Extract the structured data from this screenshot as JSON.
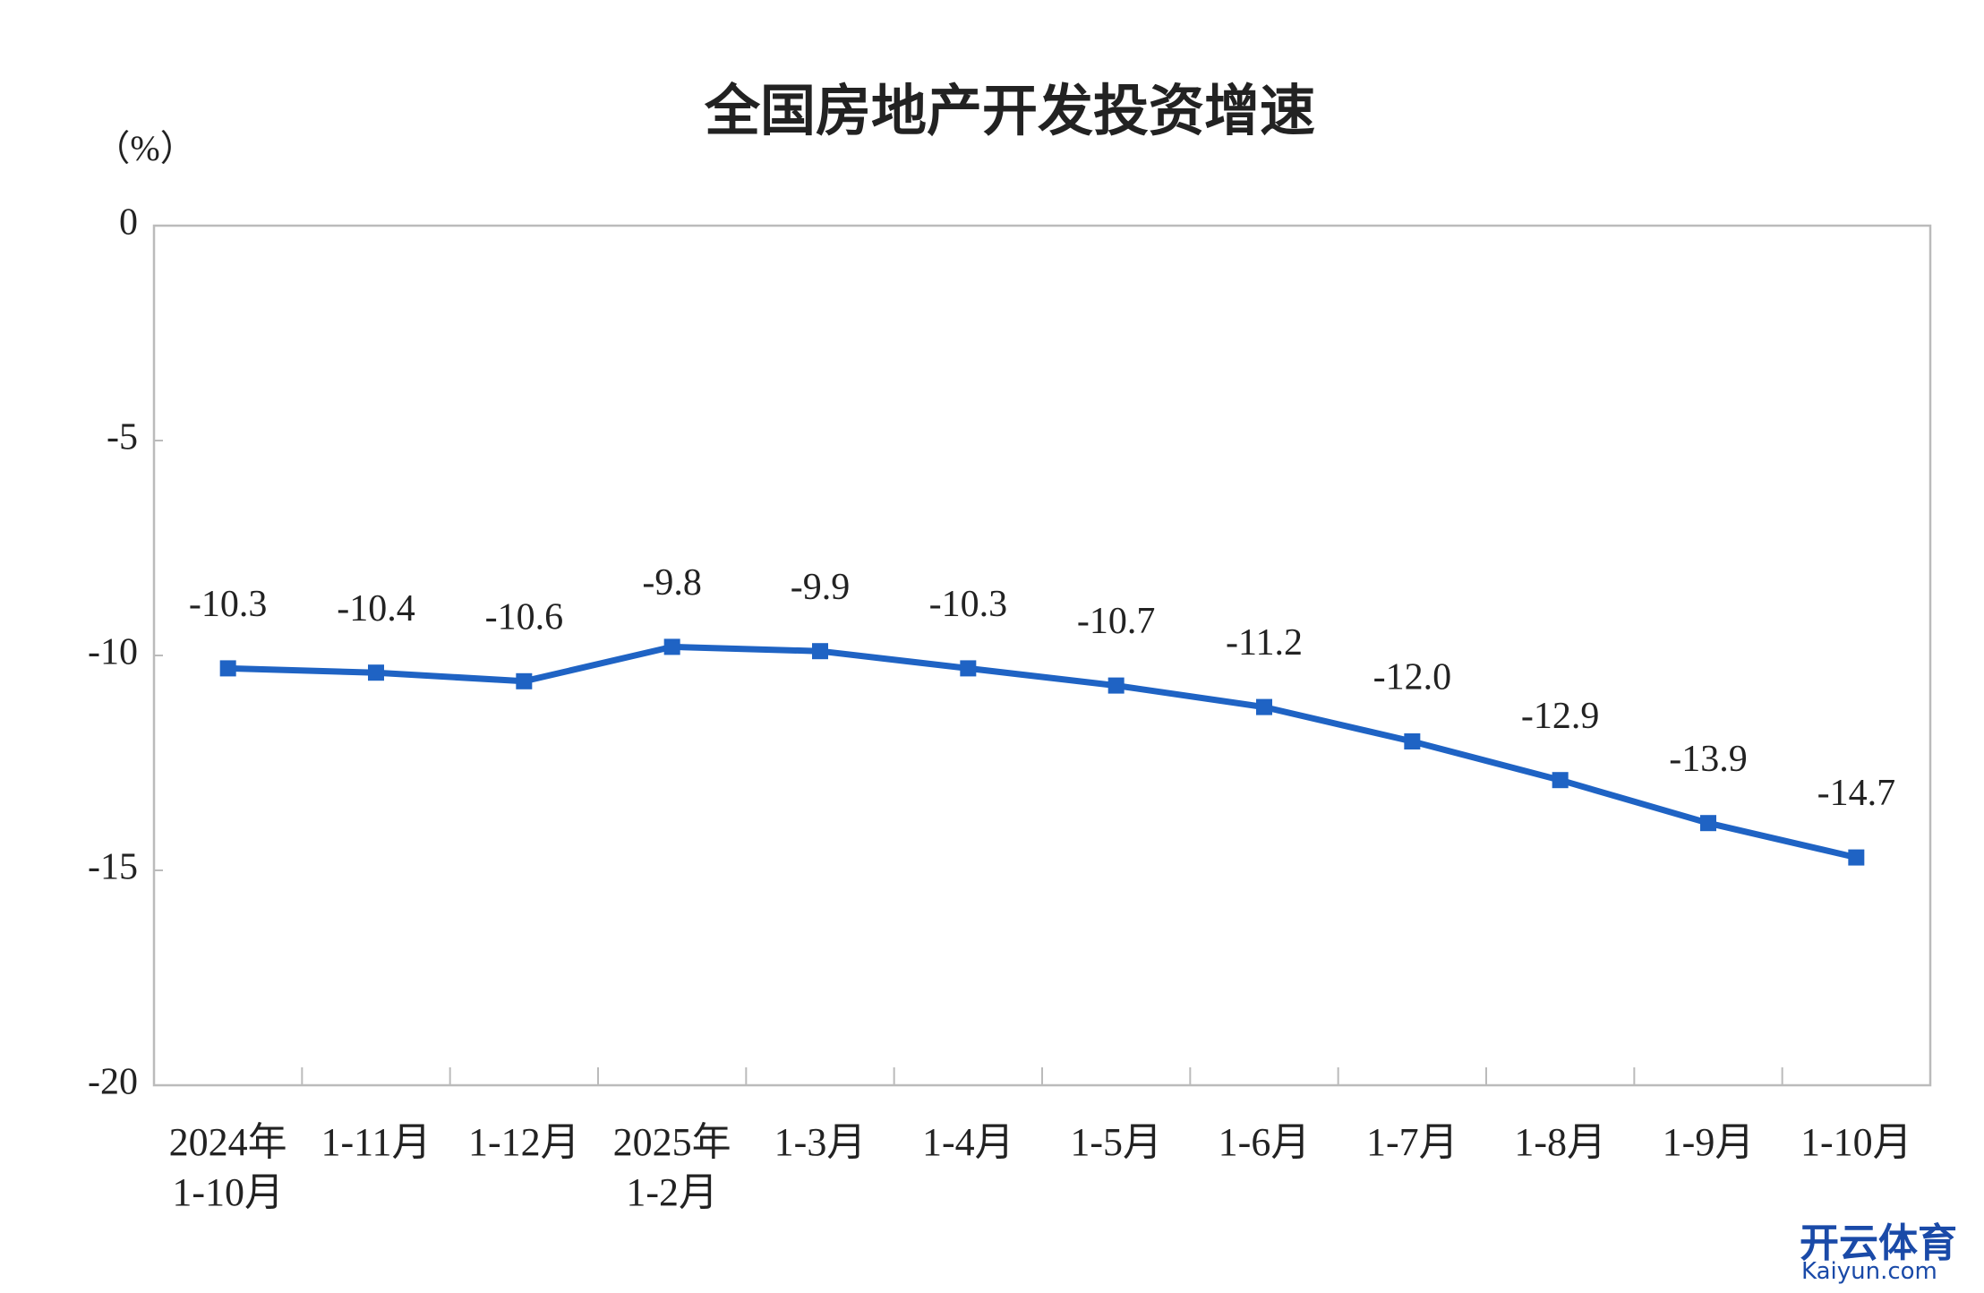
{
  "chart_data": {
    "type": "line",
    "title": "全国房地产开发投资增速",
    "unit_label": "（%）",
    "categories": [
      "2024年\n1-10月",
      "1-11月",
      "1-12月",
      "2025年\n1-2月",
      "1-3月",
      "1-4月",
      "1-5月",
      "1-6月",
      "1-7月",
      "1-8月",
      "1-9月",
      "1-10月"
    ],
    "series": [
      {
        "name": "全国房地产开发投资增速",
        "color": "#1f63c4",
        "values": [
          -10.3,
          -10.4,
          -10.6,
          -9.8,
          -9.9,
          -10.3,
          -10.7,
          -11.2,
          -12.0,
          -12.9,
          -13.9,
          -14.7
        ],
        "value_labels": [
          "-10.3",
          "-10.4",
          "-10.6",
          "-9.8",
          "-9.9",
          "-10.3",
          "-10.7",
          "-11.2",
          "-12.0",
          "-12.9",
          "-13.9",
          "-14.7"
        ]
      }
    ],
    "ylim": [
      -20,
      0
    ],
    "yticks": [
      0,
      -5,
      -10,
      -15,
      -20
    ],
    "grid": false
  },
  "watermark": {
    "brand": "开云体育",
    "site": "Kaiyun.com"
  }
}
